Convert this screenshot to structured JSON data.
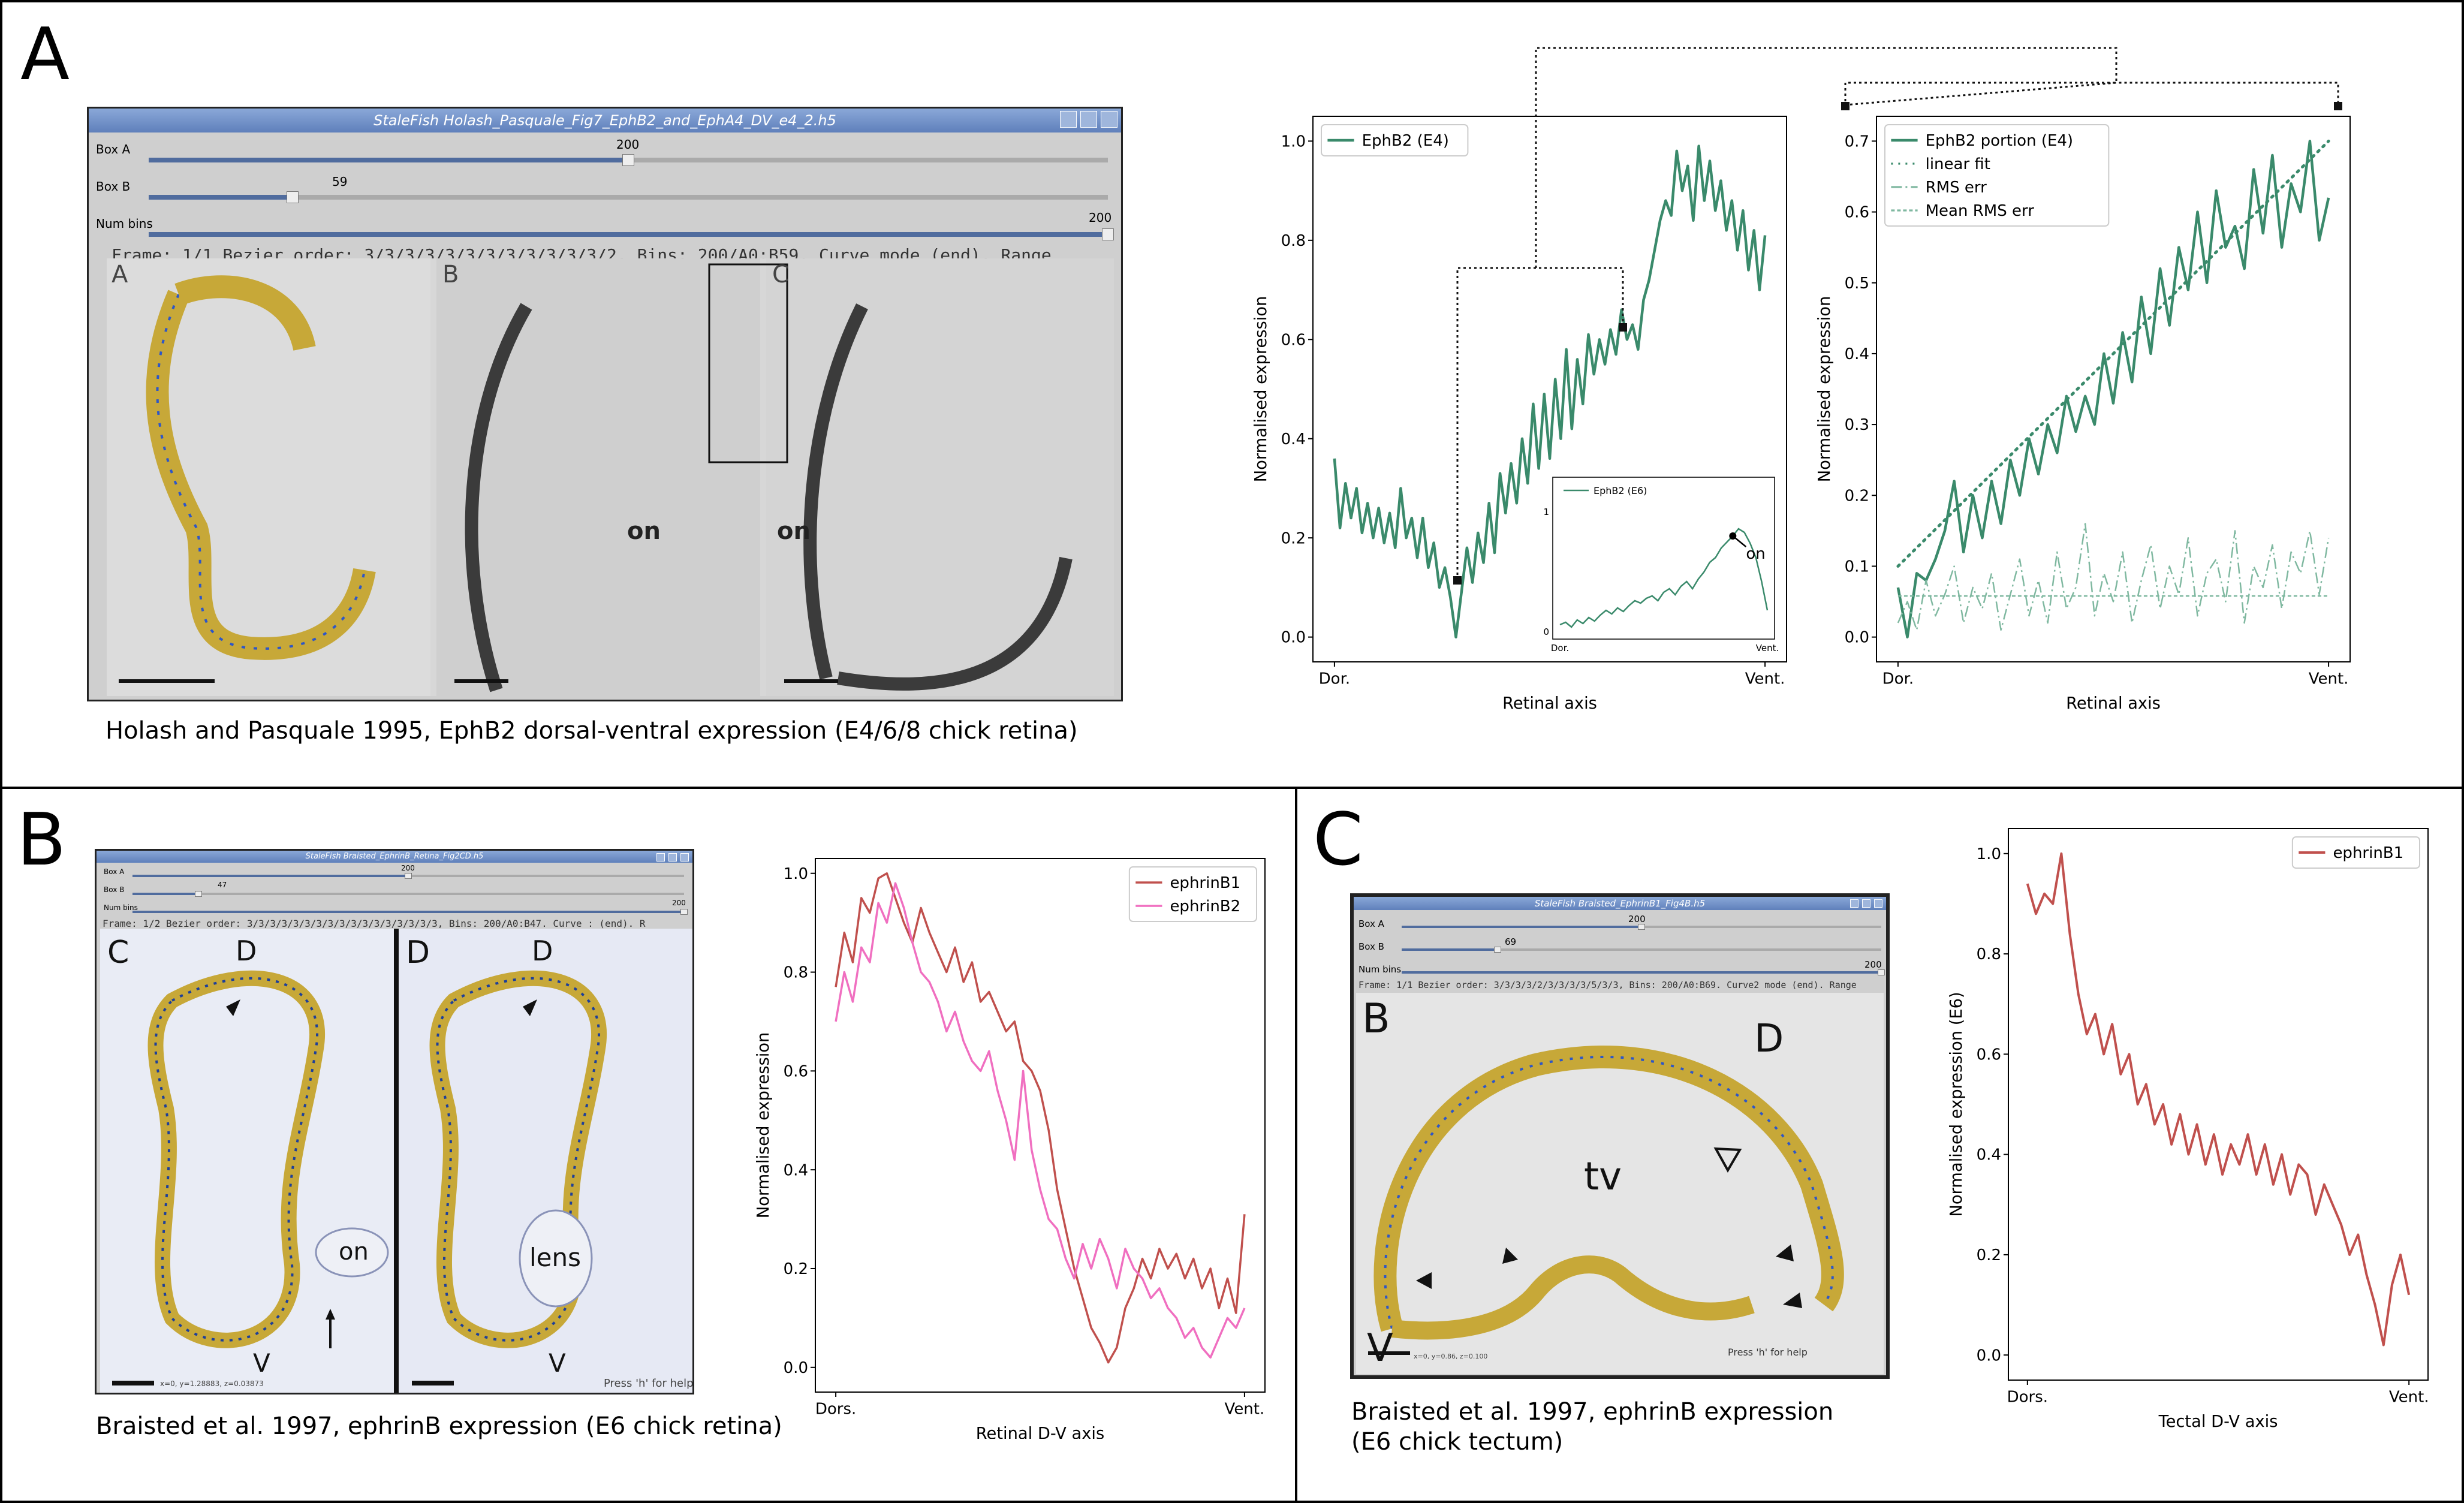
{
  "panels": {
    "a": {
      "letter": "A",
      "caption": "Holash and Pasquale 1995, EphB2 dorsal-ventral expression (E4/6/8 chick retina)"
    },
    "b": {
      "letter": "B",
      "caption": "Braisted et al. 1997, ephrinB expression (E6 chick retina)"
    },
    "c": {
      "letter": "C",
      "caption_line1": "Braisted et al. 1997, ephrinB expression",
      "caption_line2": "(E6 chick tectum)"
    }
  },
  "windows": {
    "a": {
      "title": "StaleFish Holash_Pasquale_Fig7_EphB2_and_EphA4_DV_e4_2.h5",
      "box_a_label": "Box A",
      "box_a_value": "200",
      "box_a_level": 0.5,
      "box_b_label": "Box B",
      "box_b_value": "59",
      "box_b_level": 0.15,
      "num_bins_label": "Num bins",
      "num_bins_value": "200",
      "num_bins_level": 1.0,
      "status": "Frame: 1/1 Bezier order: 3/3/3/3/3/3/3/3/3/3/3/3/2. Bins: 200/A0:B59. Curve mode (end). Range",
      "overlay": {
        "a": "A",
        "b": "B",
        "c": "C",
        "on1": "on",
        "on2": "on"
      }
    },
    "b": {
      "title": "StaleFish Braisted_EphrinB_Retina_Fig2CD.h5",
      "box_a_label": "Box A",
      "box_a_value": "200",
      "box_a_level": 0.5,
      "box_b_label": "Box B",
      "box_b_value": "47",
      "box_b_level": 0.12,
      "num_bins_label": "Num bins",
      "num_bins_value": "200",
      "num_bins_level": 1.0,
      "status": "Frame: 1/2 Bezier order: 3/3/3/3/3/3/3/3/3/3/3/3/3/3/3/3/3, Bins: 200/A0:B47. Curve : (end). R",
      "footer": "x=0, y=1.28883, z=0.03873",
      "overlay": {
        "c": "C",
        "d": "D",
        "d_top_left": "D",
        "d_top_right": "D",
        "on": "on",
        "lens": "lens",
        "v_left": "V",
        "v_right": "V",
        "help": "Press 'h' for help"
      }
    },
    "c": {
      "title": "StaleFish Braisted_EphrinB1_Fig4B.h5",
      "box_a_label": "Box A",
      "box_a_value": "200",
      "box_a_level": 0.5,
      "box_b_label": "Box B",
      "box_b_value": "69",
      "box_b_level": 0.2,
      "num_bins_label": "Num bins",
      "num_bins_value": "200",
      "num_bins_level": 1.0,
      "status": "Frame: 1/1 Bezier order: 3/3/3/3/2/3/3/3/3/5/3/3, Bins: 200/A0:B69. Curve2 mode (end). Range",
      "footer": "x=0, y=0.86, z=0.100",
      "overlay": {
        "b": "B",
        "d": "D",
        "tv": "tv",
        "v": "V",
        "help": "Press 'h' for help"
      }
    }
  },
  "chart_data": [
    {
      "id": "a-main",
      "type": "line",
      "xlabel": "Retinal axis",
      "ylabel": "Normalised expression",
      "x_tick_labels": [
        "Dor.",
        "Vent."
      ],
      "ylim": [
        0,
        1.0
      ],
      "y_ticks": [
        "0.0",
        "0.2",
        "0.4",
        "0.6",
        "0.8",
        "1.0"
      ],
      "legend": "top-left",
      "series": [
        {
          "name": "EphB2 (E4)",
          "color": "#3a8a6b",
          "x_range": [
            0,
            1
          ],
          "values": [
            0.36,
            0.22,
            0.31,
            0.24,
            0.3,
            0.21,
            0.27,
            0.2,
            0.26,
            0.19,
            0.25,
            0.18,
            0.3,
            0.2,
            0.24,
            0.16,
            0.24,
            0.14,
            0.19,
            0.1,
            0.14,
            0.08,
            0.0,
            0.09,
            0.18,
            0.11,
            0.21,
            0.15,
            0.27,
            0.17,
            0.33,
            0.25,
            0.35,
            0.27,
            0.4,
            0.31,
            0.47,
            0.34,
            0.49,
            0.36,
            0.52,
            0.4,
            0.58,
            0.42,
            0.56,
            0.47,
            0.61,
            0.53,
            0.6,
            0.55,
            0.62,
            0.57,
            0.66,
            0.6,
            0.63,
            0.58,
            0.68,
            0.72,
            0.78,
            0.84,
            0.88,
            0.85,
            0.98,
            0.9,
            0.95,
            0.84,
            0.99,
            0.88,
            0.96,
            0.86,
            0.92,
            0.82,
            0.88,
            0.78,
            0.86,
            0.74,
            0.82,
            0.7,
            0.81
          ]
        }
      ]
    },
    {
      "id": "a-inset",
      "type": "line",
      "x_tick_labels": [
        "Dor.",
        "Vent."
      ],
      "y_ticks": [
        "0",
        "1"
      ],
      "legend": "top-left",
      "annotation": "on",
      "series": [
        {
          "name": "EphB2 (E6)",
          "color": "#3a8a6b",
          "x_range": [
            0,
            1
          ],
          "values": [
            0.06,
            0.08,
            0.04,
            0.1,
            0.07,
            0.12,
            0.09,
            0.14,
            0.18,
            0.15,
            0.2,
            0.17,
            0.22,
            0.26,
            0.24,
            0.28,
            0.3,
            0.26,
            0.33,
            0.36,
            0.31,
            0.38,
            0.42,
            0.36,
            0.44,
            0.5,
            0.58,
            0.62,
            0.7,
            0.75,
            0.8,
            0.86,
            0.83,
            0.74,
            0.62,
            0.42,
            0.18
          ]
        }
      ]
    },
    {
      "id": "a-right",
      "type": "line",
      "xlabel": "Retinal axis",
      "ylabel": "Normalised expression",
      "x_tick_labels": [
        "Dor.",
        "Vent."
      ],
      "ylim": [
        0,
        0.7
      ],
      "y_ticks": [
        "0.0",
        "0.1",
        "0.2",
        "0.3",
        "0.4",
        "0.5",
        "0.6",
        "0.7"
      ],
      "legend": "top-left",
      "series": [
        {
          "name": "EphB2 portion (E4)",
          "color": "#3a8a6b",
          "x_range": [
            0,
            1
          ],
          "values": [
            0.07,
            0.0,
            0.09,
            0.08,
            0.11,
            0.15,
            0.22,
            0.12,
            0.2,
            0.14,
            0.22,
            0.16,
            0.25,
            0.2,
            0.28,
            0.23,
            0.3,
            0.26,
            0.34,
            0.29,
            0.34,
            0.3,
            0.4,
            0.33,
            0.43,
            0.36,
            0.48,
            0.4,
            0.52,
            0.44,
            0.55,
            0.49,
            0.6,
            0.5,
            0.63,
            0.55,
            0.58,
            0.52,
            0.66,
            0.57,
            0.68,
            0.55,
            0.64,
            0.6,
            0.7,
            0.56,
            0.62
          ]
        },
        {
          "name": "linear fit",
          "color": "#3a8a6b",
          "style": "dotted",
          "x_range": [
            0,
            1
          ],
          "values": [
            0.1,
            0.7
          ]
        },
        {
          "name": "RMS err",
          "color": "#7fb8a0",
          "style": "dashdot",
          "x_range": [
            0,
            1
          ],
          "values": [
            0.02,
            0.05,
            0.01,
            0.08,
            0.03,
            0.06,
            0.1,
            0.02,
            0.07,
            0.04,
            0.09,
            0.01,
            0.06,
            0.11,
            0.03,
            0.08,
            0.02,
            0.12,
            0.04,
            0.07,
            0.16,
            0.03,
            0.09,
            0.05,
            0.12,
            0.02,
            0.08,
            0.13,
            0.04,
            0.1,
            0.06,
            0.14,
            0.03,
            0.09,
            0.11,
            0.05,
            0.15,
            0.02,
            0.1,
            0.07,
            0.13,
            0.04,
            0.12,
            0.09,
            0.15,
            0.06,
            0.14
          ]
        },
        {
          "name": "Mean RMS err",
          "color": "#7fb8a0",
          "style": "dashed",
          "x_range": [
            0,
            1
          ],
          "values": [
            0.058,
            0.058
          ]
        }
      ]
    },
    {
      "id": "b-chart",
      "type": "line",
      "xlabel": "Retinal D-V axis",
      "ylabel": "Normalised expression",
      "x_tick_labels": [
        "Dors.",
        "Vent."
      ],
      "ylim": [
        0,
        1.0
      ],
      "y_ticks": [
        "0.0",
        "0.2",
        "0.4",
        "0.6",
        "0.8",
        "1.0"
      ],
      "legend": "top-right",
      "series": [
        {
          "name": "ephrinB1",
          "color": "#c0504d",
          "x_range": [
            0,
            1
          ],
          "values": [
            0.77,
            0.88,
            0.82,
            0.95,
            0.92,
            0.99,
            1.0,
            0.95,
            0.9,
            0.86,
            0.93,
            0.88,
            0.84,
            0.8,
            0.85,
            0.78,
            0.82,
            0.74,
            0.76,
            0.72,
            0.68,
            0.7,
            0.62,
            0.6,
            0.56,
            0.48,
            0.36,
            0.28,
            0.2,
            0.14,
            0.08,
            0.05,
            0.01,
            0.04,
            0.12,
            0.16,
            0.22,
            0.18,
            0.24,
            0.2,
            0.23,
            0.18,
            0.22,
            0.16,
            0.2,
            0.12,
            0.18,
            0.11,
            0.31
          ]
        },
        {
          "name": "ephrinB2",
          "color": "#f06fc0",
          "x_range": [
            0,
            1
          ],
          "values": [
            0.7,
            0.8,
            0.74,
            0.85,
            0.82,
            0.94,
            0.9,
            0.98,
            0.93,
            0.86,
            0.8,
            0.78,
            0.74,
            0.68,
            0.72,
            0.66,
            0.62,
            0.6,
            0.64,
            0.56,
            0.5,
            0.42,
            0.6,
            0.44,
            0.36,
            0.3,
            0.28,
            0.22,
            0.18,
            0.25,
            0.2,
            0.26,
            0.22,
            0.16,
            0.24,
            0.2,
            0.18,
            0.14,
            0.16,
            0.12,
            0.1,
            0.06,
            0.08,
            0.04,
            0.02,
            0.06,
            0.1,
            0.08,
            0.12
          ]
        }
      ]
    },
    {
      "id": "c-chart",
      "type": "line",
      "xlabel": "Tectal D-V axis",
      "ylabel": "Normalised expression (E6)",
      "x_tick_labels": [
        "Dors.",
        "Vent."
      ],
      "ylim": [
        0,
        1.0
      ],
      "y_ticks": [
        "0.0",
        "0.2",
        "0.4",
        "0.6",
        "0.8",
        "1.0"
      ],
      "legend": "top-right",
      "series": [
        {
          "name": "ephrinB1",
          "color": "#c0504d",
          "x_range": [
            0,
            1
          ],
          "values": [
            0.94,
            0.88,
            0.92,
            0.9,
            1.0,
            0.84,
            0.72,
            0.64,
            0.68,
            0.6,
            0.66,
            0.56,
            0.6,
            0.5,
            0.54,
            0.46,
            0.5,
            0.42,
            0.48,
            0.4,
            0.46,
            0.38,
            0.44,
            0.36,
            0.42,
            0.38,
            0.44,
            0.36,
            0.42,
            0.34,
            0.4,
            0.32,
            0.38,
            0.36,
            0.28,
            0.34,
            0.3,
            0.26,
            0.2,
            0.24,
            0.16,
            0.1,
            0.02,
            0.14,
            0.2,
            0.12
          ]
        }
      ]
    }
  ]
}
